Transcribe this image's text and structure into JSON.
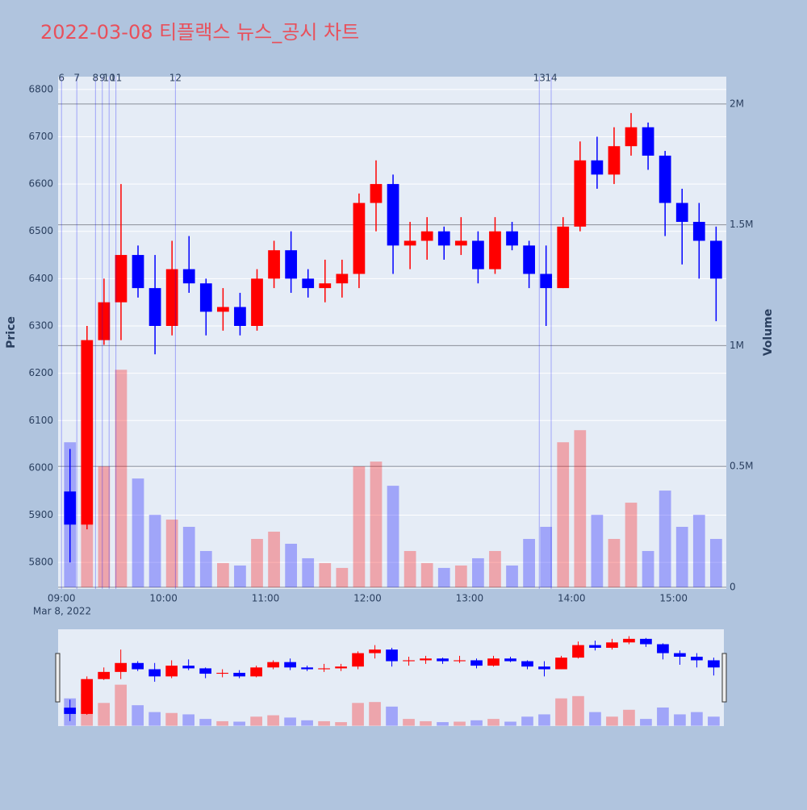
{
  "chart_data": {
    "type": "candlestick",
    "title": "2022-03-08 티플랙스 뉴스_공시 차트",
    "y_label": "Price",
    "y2_label": "Volume",
    "date_label": "Mar 8, 2022",
    "x": [
      "09:00",
      "09:10",
      "09:20",
      "09:30",
      "09:40",
      "09:50",
      "10:00",
      "10:10",
      "10:20",
      "10:30",
      "10:40",
      "10:50",
      "11:00",
      "11:10",
      "11:20",
      "11:30",
      "11:40",
      "11:50",
      "12:00",
      "12:10",
      "12:20",
      "12:30",
      "12:40",
      "12:50",
      "13:00",
      "13:10",
      "13:20",
      "13:30",
      "13:40",
      "13:50",
      "14:00",
      "14:10",
      "14:20",
      "14:30",
      "14:40",
      "14:50",
      "15:00",
      "15:10",
      "15:20"
    ],
    "open": [
      5950,
      5880,
      6270,
      6350,
      6450,
      6380,
      6300,
      6420,
      6390,
      6330,
      6340,
      6300,
      6400,
      6460,
      6400,
      6380,
      6390,
      6410,
      6560,
      6600,
      6470,
      6480,
      6500,
      6470,
      6480,
      6420,
      6500,
      6470,
      6410,
      6380,
      6510,
      6650,
      6620,
      6680,
      6720,
      6660,
      6560,
      6520,
      6480
    ],
    "high": [
      6040,
      6300,
      6400,
      6600,
      6470,
      6450,
      6480,
      6490,
      6400,
      6380,
      6370,
      6420,
      6480,
      6500,
      6420,
      6440,
      6440,
      6580,
      6650,
      6620,
      6520,
      6530,
      6510,
      6530,
      6500,
      6530,
      6520,
      6480,
      6470,
      6530,
      6690,
      6700,
      6720,
      6750,
      6730,
      6670,
      6590,
      6560,
      6510
    ],
    "low": [
      5800,
      5870,
      6260,
      6270,
      6360,
      6240,
      6280,
      6370,
      6280,
      6290,
      6280,
      6290,
      6380,
      6370,
      6360,
      6350,
      6360,
      6380,
      6500,
      6410,
      6420,
      6440,
      6440,
      6450,
      6390,
      6410,
      6460,
      6380,
      6300,
      6380,
      6500,
      6590,
      6600,
      6660,
      6630,
      6490,
      6430,
      6400,
      6310
    ],
    "close": [
      5880,
      6270,
      6350,
      6450,
      6380,
      6300,
      6420,
      6390,
      6330,
      6340,
      6300,
      6400,
      6460,
      6400,
      6380,
      6390,
      6410,
      6560,
      6600,
      6470,
      6480,
      6500,
      6470,
      6480,
      6420,
      6500,
      6470,
      6410,
      6380,
      6510,
      6650,
      6620,
      6680,
      6720,
      6660,
      6560,
      6520,
      6480,
      6400
    ],
    "volume": [
      600000,
      700000,
      500000,
      900000,
      450000,
      300000,
      280000,
      250000,
      150000,
      100000,
      90000,
      200000,
      230000,
      180000,
      120000,
      100000,
      80000,
      500000,
      520000,
      420000,
      150000,
      100000,
      80000,
      90000,
      120000,
      150000,
      90000,
      200000,
      250000,
      600000,
      650000,
      300000,
      200000,
      350000,
      150000,
      400000,
      250000,
      300000,
      200000
    ],
    "increasing_color": "#ff0000",
    "decreasing_color": "#0000ff",
    "xlim": [
      "08:58",
      "15:31"
    ],
    "xticks": [
      "09:00",
      "10:00",
      "11:00",
      "12:00",
      "13:00",
      "14:00",
      "15:00"
    ],
    "ylim": [
      5744,
      6827
    ],
    "yticks": [
      5800,
      5900,
      6000,
      6100,
      6200,
      6300,
      6400,
      6500,
      6600,
      6700,
      6800
    ],
    "y2lim": [
      -7000,
      2113000
    ],
    "y2ticks": [
      0,
      {
        "value": 500000,
        "label": "0.5M"
      },
      {
        "value": 1000000,
        "label": "1M"
      },
      {
        "value": 1500000,
        "label": "1.5M"
      },
      {
        "value": 2000000,
        "label": "2M"
      }
    ],
    "news": [
      {
        "label": "6",
        "x": "09:00"
      },
      {
        "label": "7",
        "x": "09:09"
      },
      {
        "label": "8",
        "x": "09:20"
      },
      {
        "label": "9",
        "x": "09:24"
      },
      {
        "label": "10",
        "x": "09:28"
      },
      {
        "label": "11",
        "x": "09:32"
      },
      {
        "label": "12",
        "x": "10:07"
      },
      {
        "label": "13",
        "x": "13:41"
      },
      {
        "label": "14",
        "x": "13:48"
      }
    ],
    "grid": true,
    "range_slider": true
  }
}
